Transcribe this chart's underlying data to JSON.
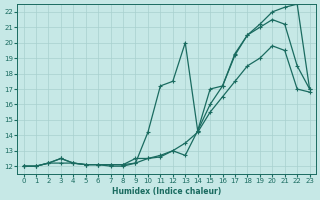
{
  "xlabel": "Humidex (Indice chaleur)",
  "bg_color": "#c6e8e6",
  "grid_color": "#a8d0ce",
  "line_color": "#1a6b60",
  "xlim": [
    -0.5,
    23.5
  ],
  "ylim": [
    11.5,
    22.5
  ],
  "xticks": [
    0,
    1,
    2,
    3,
    4,
    5,
    6,
    7,
    8,
    9,
    10,
    11,
    12,
    13,
    14,
    15,
    16,
    17,
    18,
    19,
    20,
    21,
    22,
    23
  ],
  "yticks": [
    12,
    13,
    14,
    15,
    16,
    17,
    18,
    19,
    20,
    21,
    22
  ],
  "line1_x": [
    0,
    1,
    2,
    3,
    4,
    5,
    6,
    7,
    8,
    9,
    10,
    11,
    12,
    13,
    14,
    15,
    16,
    17,
    18,
    19,
    20,
    21,
    22,
    23
  ],
  "line1_y": [
    12,
    12,
    12.2,
    12.2,
    12.2,
    12.1,
    12.1,
    12,
    12,
    12.2,
    12.5,
    12.6,
    13,
    13.5,
    14.2,
    15.5,
    16.5,
    17.5,
    18.5,
    19.0,
    19.8,
    19.5,
    17,
    16.8
  ],
  "line2_x": [
    0,
    1,
    2,
    3,
    4,
    5,
    6,
    7,
    8,
    9,
    10,
    11,
    12,
    13,
    14,
    15,
    16,
    17,
    18,
    19,
    20,
    21,
    22,
    23
  ],
  "line2_y": [
    12,
    12,
    12.2,
    12.5,
    12.2,
    12.1,
    12.1,
    12.1,
    12.1,
    12.2,
    14.2,
    17.2,
    17.5,
    20.0,
    14.3,
    17.0,
    17.2,
    19.3,
    20.5,
    21.0,
    21.5,
    21.2,
    18.5,
    17.0
  ],
  "line3_x": [
    0,
    1,
    2,
    3,
    4,
    5,
    6,
    7,
    8,
    9,
    10,
    11,
    12,
    13,
    14,
    15,
    16,
    17,
    18,
    19,
    20,
    21,
    22,
    23
  ],
  "line3_y": [
    12,
    12,
    12.2,
    12.5,
    12.2,
    12.1,
    12.1,
    12.1,
    12.1,
    12.5,
    12.5,
    12.7,
    13.0,
    12.7,
    14.3,
    16.0,
    17.2,
    19.2,
    20.5,
    21.2,
    22.0,
    22.3,
    22.5,
    17.0
  ]
}
